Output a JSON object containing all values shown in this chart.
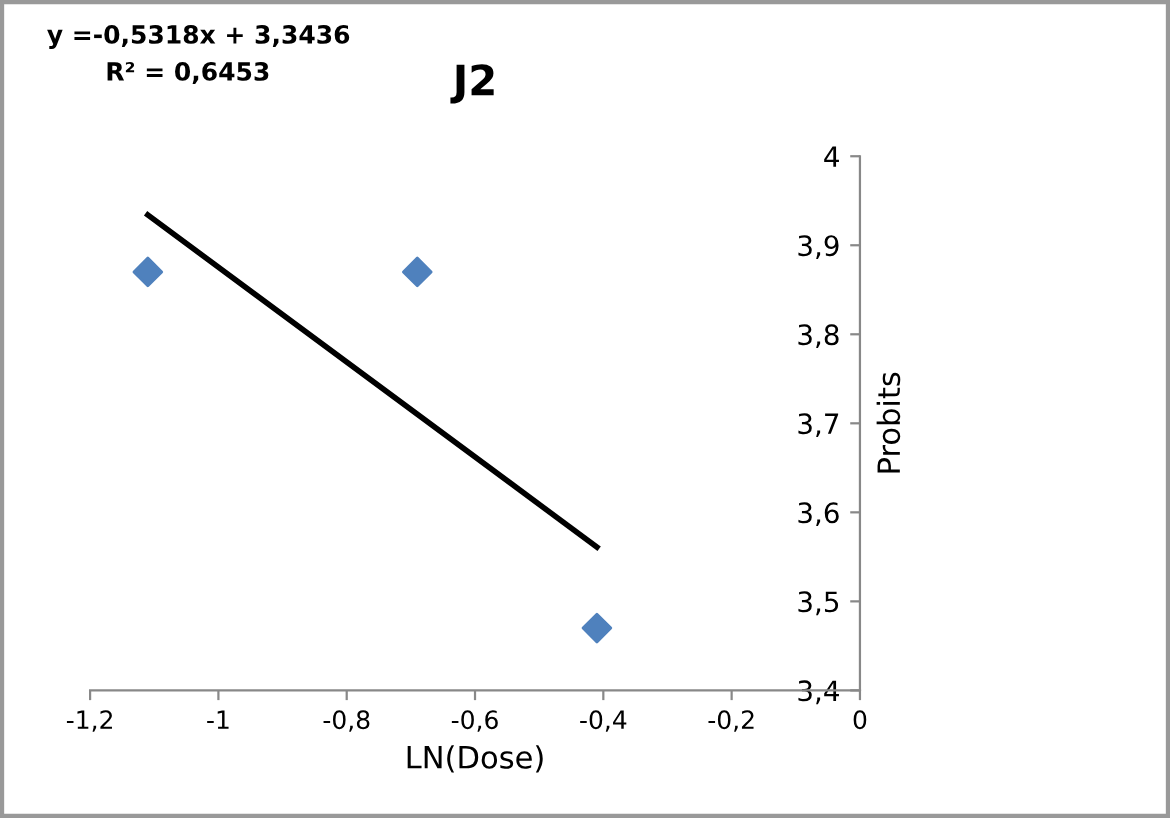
{
  "chart_data": {
    "type": "scatter",
    "title": "J2",
    "xlabel": "LN(Dose)",
    "ylabel": "Probits",
    "annotations": [
      "y =-0,5318x + 3,3436",
      "R² = 0,6453"
    ],
    "series": [
      {
        "color": "#4f81bd",
        "marker": "diamond",
        "x": [
          -1.11,
          -0.69,
          -0.41
        ],
        "values": [
          3.87,
          3.87,
          3.47
        ]
      },
      {
        "type": "line",
        "color": "#000000",
        "marker": "none",
        "x": [
          -1.11,
          -0.41
        ],
        "values": [
          3.934,
          3.561
        ]
      }
    ],
    "xlim": [
      -1.2,
      0
    ],
    "ylim": [
      3.4,
      4
    ],
    "xticks": [
      {
        "value": -1.2,
        "label": "-1,2"
      },
      -1,
      {
        "value": -0.8,
        "label": "-0,8"
      },
      {
        "value": -0.6,
        "label": "-0,6"
      },
      {
        "value": -0.4,
        "label": "-0,4"
      },
      {
        "value": -0.2,
        "label": "-0,2"
      },
      0
    ],
    "yticks": [
      {
        "value": 3.4,
        "label": "3,4"
      },
      {
        "value": 3.5,
        "label": "3,5"
      },
      {
        "value": 3.6,
        "label": "3,6"
      },
      {
        "value": 3.7,
        "label": "3,7"
      },
      {
        "value": 3.8,
        "label": "3,8"
      },
      {
        "value": 3.9,
        "label": "3,9"
      },
      4
    ],
    "grid": false,
    "legend": false
  }
}
